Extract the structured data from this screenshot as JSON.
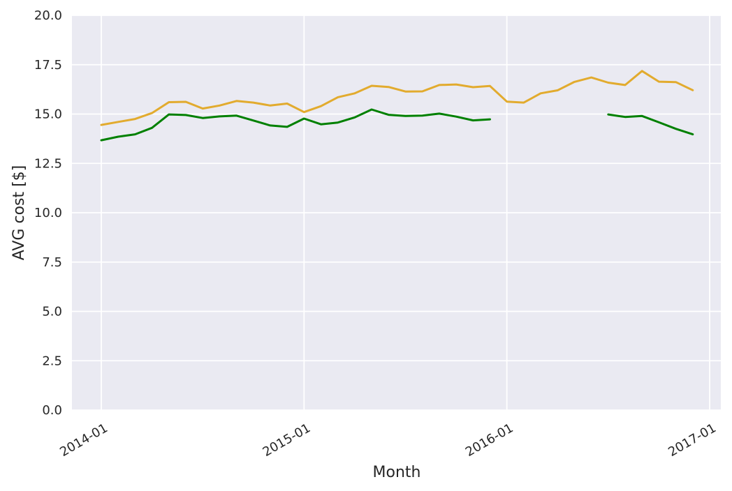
{
  "chart_data": {
    "type": "line",
    "title": "",
    "xlabel": "Month",
    "ylabel": "AVG cost [$]",
    "ylim": [
      0,
      20
    ],
    "y_ticks": [
      "0.0",
      "2.5",
      "5.0",
      "7.5",
      "10.0",
      "12.5",
      "15.0",
      "17.5",
      "20.0"
    ],
    "x_ticks": [
      "2014-01",
      "2015-01",
      "2016-01",
      "2017-01"
    ],
    "grid": true,
    "x": [
      "2014-01",
      "2014-02",
      "2014-03",
      "2014-04",
      "2014-05",
      "2014-06",
      "2014-07",
      "2014-08",
      "2014-09",
      "2014-10",
      "2014-11",
      "2014-12",
      "2015-01",
      "2015-02",
      "2015-03",
      "2015-04",
      "2015-05",
      "2015-06",
      "2015-07",
      "2015-08",
      "2015-09",
      "2015-10",
      "2015-11",
      "2015-12",
      "2016-01",
      "2016-02",
      "2016-03",
      "2016-04",
      "2016-05",
      "2016-06",
      "2016-07",
      "2016-08",
      "2016-09",
      "2016-10",
      "2016-11",
      "2016-12"
    ],
    "series": [
      {
        "color": "#e2ab2e",
        "values": [
          14.45,
          14.6,
          14.75,
          15.05,
          15.6,
          15.62,
          15.28,
          15.43,
          15.66,
          15.58,
          15.43,
          15.53,
          15.1,
          15.4,
          15.85,
          16.05,
          16.43,
          16.37,
          16.14,
          16.15,
          16.47,
          16.5,
          16.36,
          16.42,
          15.63,
          15.58,
          16.05,
          16.2,
          16.63,
          16.85,
          16.59,
          16.47,
          17.18,
          16.64,
          16.62,
          16.21
        ]
      },
      {
        "color": "#008000",
        "values": [
          13.67,
          13.85,
          13.97,
          14.3,
          14.98,
          14.95,
          14.8,
          14.88,
          14.92,
          14.67,
          14.42,
          14.35,
          14.77,
          14.48,
          14.57,
          14.83,
          15.23,
          14.96,
          14.9,
          14.92,
          15.02,
          14.87,
          14.68,
          14.73,
          null,
          null,
          null,
          null,
          null,
          null,
          14.98,
          14.85,
          14.9,
          14.58,
          14.25,
          13.97
        ]
      }
    ]
  }
}
